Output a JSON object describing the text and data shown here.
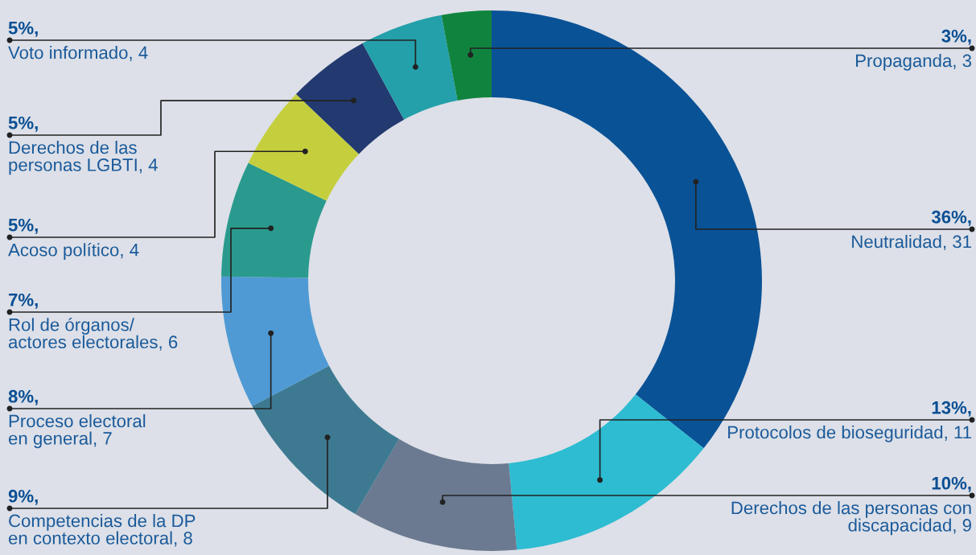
{
  "chart_data": {
    "type": "donut",
    "categories": [
      "Neutralidad, 31",
      "Protocolos de bioseguridad, 11",
      "Derechos de las personas con\ndiscapacidad, 9",
      "Competencias de la DP\nen contexto electoral, 8",
      "Proceso electoral\nen general, 7",
      "Rol de órganos/\nactores electorales, 6",
      "Acoso político, 4",
      "Derechos de las\npersonas LGBTI, 4",
      "Voto informado, 4",
      "Propaganda, 3"
    ],
    "values": [
      36,
      13,
      10,
      9,
      8,
      7,
      5,
      5,
      5,
      3
    ],
    "value_labels": [
      "36%,",
      "13%,",
      "10%,",
      "9%,",
      "8%,",
      "7%,",
      "5%,",
      "5%,",
      "5%,",
      "3%,"
    ],
    "colors": [
      "#0a5296",
      "#2dbcd2",
      "#6b7a90",
      "#3d7a92",
      "#4f9ad4",
      "#2a9a8e",
      "#c5cf3e",
      "#233a70",
      "#23a0aa",
      "#10843f"
    ]
  }
}
